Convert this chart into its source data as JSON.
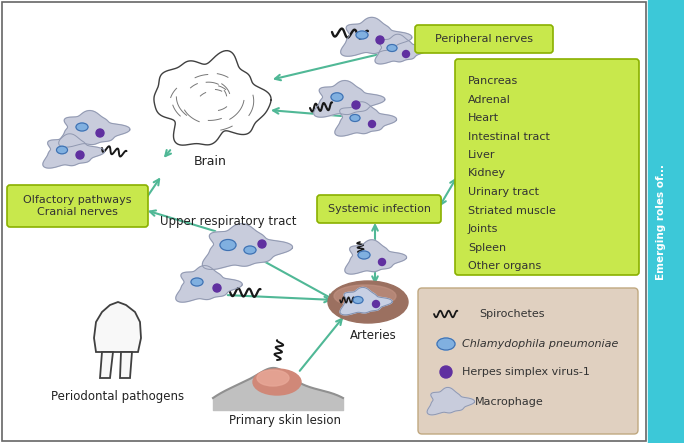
{
  "bg_color": "#ffffff",
  "right_bar_color": "#3cc8d8",
  "right_bar_text": "Emerging roles of...",
  "green_box_color": "#c8e84c",
  "green_box_border": "#8ab000",
  "organs_box_color": "#c8e84c",
  "organs_list": [
    "Pancreas",
    "Adrenal",
    "Heart",
    "Intestinal tract",
    "Liver",
    "Kidney",
    "Urinary tract",
    "Striated muscle",
    "Joints",
    "Spleen",
    "Other organs"
  ],
  "legend_bg": "#e0d0c0",
  "legend_border": "#c0a880",
  "legend_items": [
    "Spirochetes",
    "Chlamydophila pneumoniae",
    "Herpes simplex virus-1",
    "Macrophage"
  ],
  "arrow_color": "#50b896",
  "labels": {
    "brain": "Brain",
    "peripheral_nerves": "Peripheral nerves",
    "olfactory": "Olfactory pathways\nCranial nerves",
    "systemic": "Systemic infection",
    "upper_resp": "Upper respiratory tract",
    "periodontal": "Periodontal pathogens",
    "arteries": "Arteries",
    "skin": "Primary skin lesion"
  },
  "macrophage_color": "#c8ccdc",
  "macrophage_border": "#9098b0",
  "chlamydo_color": "#80b0e0",
  "chlamydo_border": "#4070b0",
  "herpes_color": "#6030a0",
  "spirochete_color": "#181818",
  "artery_outer_color": "#9b7060",
  "artery_inner_color": "#c09080",
  "tooth_color": "#f8f8f8",
  "tooth_border": "#404040",
  "brain_border": "#404040",
  "skin_body_color": "#c8c8c8",
  "skin_lesion_color": "#d08070",
  "skin_lesion_highlight": "#e8a090"
}
